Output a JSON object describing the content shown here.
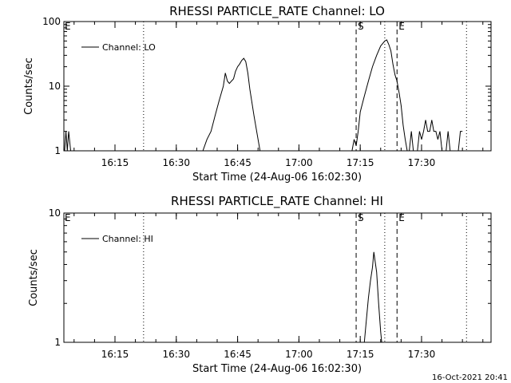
{
  "timestamp": "16-Oct-2021 20:41",
  "chart_data": [
    {
      "type": "line",
      "title": "RHESSI PARTICLE_RATE Channel: LO",
      "xlabel": "Start Time (24-Aug-06 16:02:30)",
      "ylabel": "Counts/sec",
      "yscale": "log",
      "ylim": [
        1,
        100
      ],
      "yticks": [
        "1",
        "10",
        "100"
      ],
      "xlim": [
        "16:02:30",
        "17:47:00"
      ],
      "xticks": [
        "16:15",
        "16:30",
        "16:45",
        "17:00",
        "17:15",
        "17:30"
      ],
      "legend": {
        "position": "top-left",
        "entries": [
          "Channel: LO"
        ]
      },
      "markers": [
        {
          "label": "E",
          "x": "16:02:30",
          "style": "none"
        },
        {
          "label": "",
          "x": "16:22:00",
          "style": "dotted"
        },
        {
          "label": "S",
          "x": "17:14:00",
          "style": "dashed"
        },
        {
          "label": "",
          "x": "17:21:00",
          "style": "dotted"
        },
        {
          "label": "E",
          "x": "17:24:00",
          "style": "dashed"
        },
        {
          "label": "",
          "x": "17:41:00",
          "style": "dotted"
        }
      ],
      "series": [
        {
          "name": "Channel: LO",
          "segments": [
            [
              [
                "16:02:40",
                1
              ],
              [
                "16:03:00",
                2
              ],
              [
                "16:03:20",
                1
              ],
              [
                "16:03:40",
                2
              ],
              [
                "16:04:10",
                1
              ]
            ],
            [
              [
                "16:36:30",
                1
              ],
              [
                "16:37:30",
                1.5
              ],
              [
                "16:38:30",
                2
              ],
              [
                "16:39:30",
                3.5
              ],
              [
                "16:40:30",
                6
              ],
              [
                "16:41:30",
                10
              ],
              [
                "16:42:00",
                16
              ],
              [
                "16:42:30",
                12
              ],
              [
                "16:43:00",
                11
              ],
              [
                "16:43:30",
                12
              ],
              [
                "16:44:00",
                13
              ],
              [
                "16:44:30",
                17
              ],
              [
                "16:45:00",
                20
              ],
              [
                "16:45:30",
                22
              ],
              [
                "16:46:00",
                25
              ],
              [
                "16:46:30",
                27
              ],
              [
                "16:47:00",
                24
              ],
              [
                "16:47:30",
                16
              ],
              [
                "16:48:00",
                9
              ],
              [
                "16:49:00",
                3.5
              ],
              [
                "16:50:00",
                1.5
              ],
              [
                "16:50:30",
                1
              ]
            ],
            [
              [
                "17:13:00",
                1
              ],
              [
                "17:13:30",
                1.5
              ],
              [
                "17:14:00",
                1.2
              ],
              [
                "17:14:30",
                2
              ],
              [
                "17:15:00",
                4
              ],
              [
                "17:16:00",
                7
              ],
              [
                "17:17:00",
                12
              ],
              [
                "17:18:00",
                20
              ],
              [
                "17:19:00",
                30
              ],
              [
                "17:20:00",
                42
              ],
              [
                "17:21:00",
                50
              ],
              [
                "17:21:30",
                52
              ],
              [
                "17:22:00",
                44
              ],
              [
                "17:22:30",
                35
              ],
              [
                "17:23:00",
                22
              ],
              [
                "17:23:30",
                15
              ],
              [
                "17:24:00",
                12
              ],
              [
                "17:24:30",
                8
              ],
              [
                "17:25:00",
                5
              ],
              [
                "17:25:30",
                2.5
              ],
              [
                "17:26:00",
                1.5
              ],
              [
                "17:26:30",
                1
              ]
            ],
            [
              [
                "17:27:00",
                1
              ],
              [
                "17:27:30",
                2
              ],
              [
                "17:28:00",
                1
              ]
            ],
            [
              [
                "17:29:00",
                1
              ],
              [
                "17:29:30",
                2
              ],
              [
                "17:30:00",
                1.5
              ],
              [
                "17:30:30",
                2
              ],
              [
                "17:31:00",
                3
              ],
              [
                "17:31:30",
                2
              ],
              [
                "17:32:00",
                2
              ],
              [
                "17:32:30",
                3
              ],
              [
                "17:33:00",
                2
              ],
              [
                "17:33:30",
                2
              ],
              [
                "17:34:00",
                1.5
              ],
              [
                "17:34:30",
                2
              ],
              [
                "17:35:00",
                1
              ]
            ],
            [
              [
                "17:36:00",
                1
              ],
              [
                "17:36:30",
                2
              ],
              [
                "17:37:00",
                1
              ]
            ],
            [
              [
                "17:39:00",
                1
              ],
              [
                "17:39:30",
                2
              ],
              [
                "17:40:00",
                2
              ]
            ]
          ]
        }
      ]
    },
    {
      "type": "line",
      "title": "RHESSI PARTICLE_RATE Channel: HI",
      "xlabel": "Start Time (24-Aug-06 16:02:30)",
      "ylabel": "Counts/sec",
      "yscale": "log",
      "ylim": [
        1,
        10
      ],
      "yticks": [
        "1",
        "10"
      ],
      "xlim": [
        "16:02:30",
        "17:47:00"
      ],
      "xticks": [
        "16:15",
        "16:30",
        "16:45",
        "17:00",
        "17:15",
        "17:30"
      ],
      "legend": {
        "position": "top-left",
        "entries": [
          "Channel: HI"
        ]
      },
      "markers": [
        {
          "label": "E",
          "x": "16:02:30",
          "style": "none"
        },
        {
          "label": "",
          "x": "16:22:00",
          "style": "dotted"
        },
        {
          "label": "S",
          "x": "17:14:00",
          "style": "dashed"
        },
        {
          "label": "",
          "x": "17:21:00",
          "style": "dotted"
        },
        {
          "label": "E",
          "x": "17:24:00",
          "style": "dashed"
        },
        {
          "label": "",
          "x": "17:41:00",
          "style": "dotted"
        }
      ],
      "series": [
        {
          "name": "Channel: HI",
          "segments": [
            [
              [
                "17:16:00",
                1
              ],
              [
                "17:16:30",
                1.5
              ],
              [
                "17:17:00",
                2.2
              ],
              [
                "17:17:30",
                3
              ],
              [
                "17:18:00",
                3.8
              ],
              [
                "17:18:20",
                5
              ],
              [
                "17:18:40",
                4.2
              ],
              [
                "17:19:00",
                3.5
              ],
              [
                "17:19:30",
                2
              ],
              [
                "17:20:00",
                1.2
              ],
              [
                "17:20:15",
                1
              ]
            ]
          ]
        }
      ]
    }
  ]
}
